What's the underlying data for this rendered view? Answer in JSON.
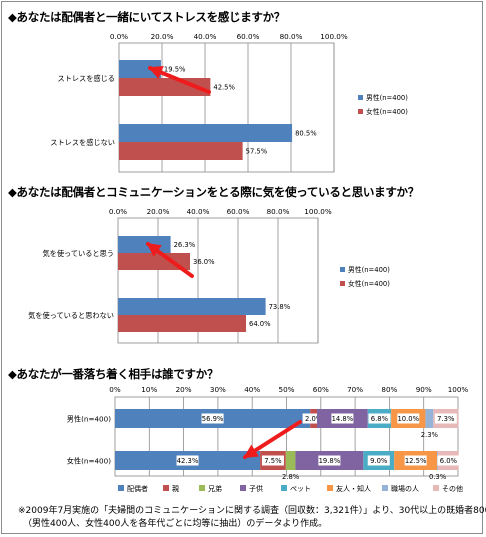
{
  "chart_data": [
    {
      "type": "bar",
      "title": "◆あなたは配偶者と一緒にいてストレスを感じますか？",
      "categories": [
        "ストレスを感じる",
        "ストレスを感じない"
      ],
      "series": [
        {
          "name": "男性(n=400)",
          "color": "#4f81bd",
          "values": [
            19.5,
            80.5
          ]
        },
        {
          "name": "女性(n=400)",
          "color": "#c0504d",
          "values": [
            42.5,
            57.5
          ]
        }
      ],
      "xlim": [
        0,
        100
      ],
      "ticks": [
        "0.0%",
        "20.0%",
        "40.0%",
        "60.0%",
        "80.0%",
        "100.0%"
      ],
      "value_suffix": "%",
      "grid": true,
      "legend": "right"
    },
    {
      "type": "bar",
      "title": "◆あなたは配偶者とコミュニケーションをとる際に気を使っていると思いますか？",
      "categories": [
        "気を使っていると思う",
        "気を使っていると思わない"
      ],
      "series": [
        {
          "name": "男性(n=400)",
          "color": "#4f81bd",
          "values": [
            26.3,
            73.8
          ]
        },
        {
          "name": "女性(n=400)",
          "color": "#c0504d",
          "values": [
            36.0,
            64.0
          ]
        }
      ],
      "xlim": [
        0,
        100
      ],
      "ticks": [
        "0.0%",
        "20.0%",
        "40.0%",
        "60.0%",
        "80.0%",
        "100.0%"
      ],
      "value_suffix": "%",
      "grid": true,
      "legend": "right"
    },
    {
      "type": "bar",
      "stacked": true,
      "title": "◆あなたが一番落ち着く相手は誰ですか？",
      "categories": [
        "男性(n=400)",
        "女性(n=400)"
      ],
      "series": [
        {
          "name": "配偶者",
          "color": "#4f81bd",
          "values": [
            56.9,
            42.3
          ]
        },
        {
          "name": "親",
          "color": "#c0504d",
          "values": [
            2.0,
            7.5
          ]
        },
        {
          "name": "兄弟",
          "color": "#9bbb59",
          "values": [
            0.0,
            2.8
          ]
        },
        {
          "name": "子供",
          "color": "#8064a2",
          "values": [
            14.8,
            19.8
          ]
        },
        {
          "name": "ペット",
          "color": "#4bacc6",
          "values": [
            6.8,
            9.0
          ]
        },
        {
          "name": "友人・知人",
          "color": "#f79646",
          "values": [
            10.0,
            12.5
          ]
        },
        {
          "name": "職場の人",
          "color": "#95b3d7",
          "values": [
            2.3,
            0.3
          ]
        },
        {
          "name": "その他",
          "color": "#e6b9b8",
          "values": [
            7.3,
            6.0
          ]
        }
      ],
      "xlim": [
        0,
        100
      ],
      "ticks": [
        "0%",
        "10%",
        "20%",
        "30%",
        "40%",
        "50%",
        "60%",
        "70%",
        "80%",
        "90%",
        "100%"
      ],
      "value_suffix": "%",
      "grid": true,
      "legend": "bottom"
    }
  ],
  "footnote": {
    "line1": "※2009年7月実施の「夫婦間のコミュニケーションに関する調査（回収数：3,321件）」より、30代以上の既婚者800人",
    "line2": "（男性400人、女性400人を各年代ごとに均等に抽出）のデータより作成。"
  }
}
